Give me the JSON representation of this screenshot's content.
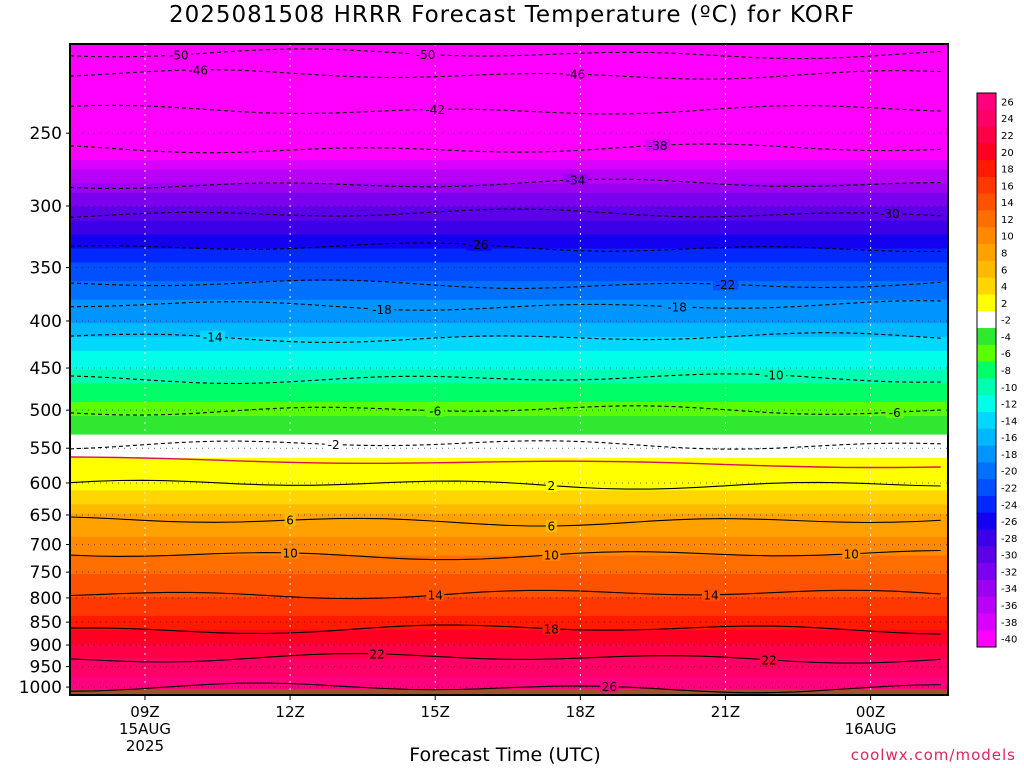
{
  "title": "2025081508 HRRR Forecast Temperature (ºC) for KORF",
  "credit": "coolwx.com/models",
  "colors": {
    "ground": "#a0522d",
    "freezing_line": "#d4145a",
    "contour": "#000000"
  },
  "chart_data": {
    "type": "heatmap",
    "title": "2025081508 HRRR Forecast Temperature (ºC) for KORF",
    "xlabel": "Forecast Time (UTC)",
    "ylabel": "",
    "y_scale": "log-pressure (inverted)",
    "y_unit": "hPa",
    "ylim": [
      1020,
      200
    ],
    "grid": true,
    "x_ticks": [
      {
        "hour": 9,
        "lines": [
          "09Z",
          "15AUG",
          "2025"
        ]
      },
      {
        "hour": 12,
        "lines": [
          "12Z"
        ]
      },
      {
        "hour": 15,
        "lines": [
          "15Z"
        ]
      },
      {
        "hour": 18,
        "lines": [
          "18Z"
        ]
      },
      {
        "hour": 21,
        "lines": [
          "21Z"
        ]
      },
      {
        "hour": 24,
        "lines": [
          "00Z",
          "16AUG"
        ]
      }
    ],
    "xlim_hours": [
      7.45,
      25.6
    ],
    "y_ticks": [
      250,
      300,
      350,
      400,
      450,
      500,
      550,
      600,
      650,
      700,
      750,
      800,
      850,
      900,
      950,
      1000
    ],
    "colorbar": {
      "labels": [
        26,
        24,
        22,
        20,
        18,
        16,
        14,
        12,
        10,
        8,
        6,
        4,
        2,
        -2,
        -4,
        -6,
        -8,
        -10,
        -12,
        -14,
        -16,
        -18,
        -20,
        -22,
        -24,
        -26,
        -28,
        -30,
        -32,
        -34,
        -36,
        -38,
        -40
      ],
      "colors": [
        "#ff007f",
        "#ff0066",
        "#ff0046",
        "#ff0022",
        "#ff1a00",
        "#ff3700",
        "#ff5200",
        "#ff6e00",
        "#ff8a00",
        "#ffa200",
        "#ffba00",
        "#ffd600",
        "#ffff00",
        "#ffffff",
        "#30e830",
        "#5aff00",
        "#00ff66",
        "#00ffb0",
        "#00ffe8",
        "#00d8ff",
        "#00b8ff",
        "#0094ff",
        "#0070ff",
        "#0050ff",
        "#0028ff",
        "#1400f0",
        "#3c00e8",
        "#5c00e8",
        "#7c00f0",
        "#9c00f0",
        "#b800f8",
        "#d800ff",
        "#ff00ff"
      ]
    },
    "temperature_profile": {
      "pressure_hpa": [
        200,
        250,
        300,
        350,
        400,
        450,
        500,
        550,
        600,
        650,
        700,
        750,
        800,
        850,
        900,
        950,
        1000
      ],
      "temp_c": [
        -52,
        -43,
        -31,
        -22,
        -17,
        -11,
        -6,
        -1,
        2,
        7,
        10,
        13,
        15,
        18,
        21,
        24,
        26
      ]
    },
    "contours": [
      {
        "value": -50,
        "pressure": 205,
        "labels_at": [
          9.7,
          14.8,
          25.9
        ]
      },
      {
        "value": -46,
        "pressure": 216,
        "labels_at": [
          10.1,
          17.9,
          26.3
        ]
      },
      {
        "value": -42,
        "pressure": 236,
        "labels_at": [
          15.0
        ]
      },
      {
        "value": -38,
        "pressure": 260,
        "labels_at": [
          19.6
        ]
      },
      {
        "value": -34,
        "pressure": 284,
        "labels_at": [
          17.9,
          26.0
        ]
      },
      {
        "value": -30,
        "pressure": 306,
        "labels_at": [
          24.4
        ]
      },
      {
        "value": -26,
        "pressure": 333,
        "labels_at": [
          15.9
        ]
      },
      {
        "value": -22,
        "pressure": 365,
        "labels_at": [
          21.0
        ]
      },
      {
        "value": -18,
        "pressure": 385,
        "labels_at": [
          13.9,
          20.0
        ]
      },
      {
        "value": -14,
        "pressure": 417,
        "labels_at": [
          10.4,
          26.2
        ]
      },
      {
        "value": -10,
        "pressure": 462,
        "labels_at": [
          22.0
        ]
      },
      {
        "value": -6,
        "pressure": 500,
        "labels_at": [
          15.0,
          24.5
        ]
      },
      {
        "value": -2,
        "pressure": 545,
        "labels_at": [
          12.9
        ]
      },
      {
        "value": 2,
        "pressure": 602,
        "labels_at": [
          17.4,
          26.4
        ]
      },
      {
        "value": 6,
        "pressure": 660,
        "labels_at": [
          12.0,
          17.4,
          26.5
        ]
      },
      {
        "value": 10,
        "pressure": 718,
        "labels_at": [
          12.0,
          17.4,
          23.6
        ]
      },
      {
        "value": 14,
        "pressure": 792,
        "labels_at": [
          15.0,
          20.7
        ]
      },
      {
        "value": 18,
        "pressure": 865,
        "labels_at": [
          17.4
        ]
      },
      {
        "value": 22,
        "pressure": 930,
        "labels_at": [
          13.8,
          21.9
        ]
      },
      {
        "value": 26,
        "pressure": 1002,
        "labels_at": [
          18.6
        ]
      }
    ]
  }
}
